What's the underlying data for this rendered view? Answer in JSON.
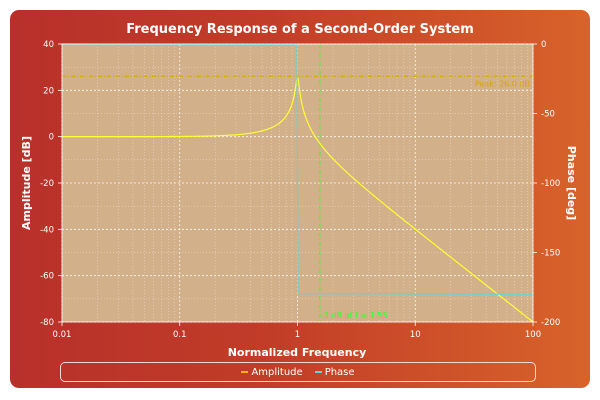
{
  "chart_data": {
    "type": "line",
    "title": "Frequency Response of a Second-Order System",
    "xlabel": "Normalized Frequency",
    "ylabel_left": "Amplitude [dB]",
    "ylabel_right": "Phase [deg]",
    "xscale": "log",
    "xlim": [
      0.01,
      100
    ],
    "ylim_left": [
      -80,
      40
    ],
    "ylim_right": [
      -200,
      0
    ],
    "x_ticks": [
      {
        "value": 0.01,
        "label": "0.01"
      },
      {
        "value": 0.1,
        "label": "0.1"
      },
      {
        "value": 1,
        "label": "1"
      },
      {
        "value": 10,
        "label": "10"
      },
      {
        "value": 100,
        "label": "100"
      }
    ],
    "y_left_ticks": [
      {
        "value": 40,
        "label": "40"
      },
      {
        "value": 20,
        "label": "20"
      },
      {
        "value": 0,
        "label": "0"
      },
      {
        "value": -20,
        "label": "-20"
      },
      {
        "value": -40,
        "label": "-40"
      },
      {
        "value": -60,
        "label": "-60"
      },
      {
        "value": -80,
        "label": "-80"
      }
    ],
    "y_right_ticks": [
      {
        "value": 0,
        "label": "0"
      },
      {
        "value": -50,
        "label": "-50"
      },
      {
        "value": -100,
        "label": "-100"
      },
      {
        "value": -150,
        "label": "-150"
      },
      {
        "value": -200,
        "label": "-200"
      }
    ],
    "grid": true,
    "series": [
      {
        "name": "Amplitude",
        "axis": "left",
        "color": "#ffff33",
        "x": [
          0.01,
          0.03,
          0.1,
          0.2,
          0.3,
          0.5,
          0.7,
          0.8,
          0.9,
          0.95,
          0.98,
          1.0,
          1.02,
          1.05,
          1.1,
          1.2,
          1.5,
          2,
          3,
          5,
          10,
          20,
          50,
          100
        ],
        "y": [
          0.0,
          0.0,
          0.1,
          0.4,
          0.8,
          2.5,
          5.8,
          8.9,
          14.5,
          19.6,
          25.2,
          26.0,
          24.0,
          18.0,
          11.5,
          5.5,
          -2.0,
          -9.5,
          -18.0,
          -27.6,
          -39.8,
          -52.0,
          -67.9,
          -80.0
        ]
      },
      {
        "name": "Phase",
        "axis": "right",
        "color": "#55d8e0",
        "x": [
          0.01,
          0.99,
          1.0,
          1.01,
          100
        ],
        "y": [
          0,
          -0.5,
          -90,
          -179.5,
          -180
        ]
      }
    ],
    "annotations": [
      {
        "type": "hline",
        "axis": "left",
        "y": 26.0,
        "color": "#d9a600",
        "text": "Peak: 26.0 dB"
      },
      {
        "type": "vline",
        "x": 1.55,
        "color": "#33ff33",
        "text": "-3 dB at f = 1.55"
      }
    ],
    "legend_position": "bottom",
    "legend": [
      {
        "name": "Amplitude",
        "color": "#ffb000"
      },
      {
        "name": "Phase",
        "color": "#55d8e0"
      }
    ],
    "colors": {
      "background_start": "#b8302a",
      "background_end": "#d8632a",
      "plot_area": "#d2b08a",
      "grid": "#ffffff"
    }
  }
}
